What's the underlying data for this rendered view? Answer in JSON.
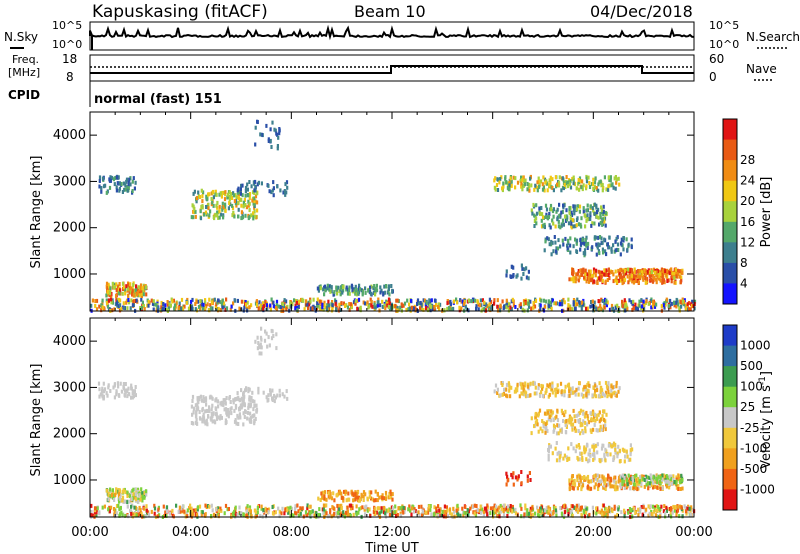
{
  "header": {
    "station": "Kapuskasing (fitACF)",
    "beam": "Beam 10",
    "date": "04/Dec/2018"
  },
  "noise_panel": {
    "left_label": "N.Sky",
    "right_label": "N.Search",
    "left_ticks": [
      "10^5",
      "10^0"
    ],
    "right_ticks": [
      "10^5",
      "10^0"
    ]
  },
  "freq_panel": {
    "left_label_line1": "Freq.",
    "left_label_line2": "[MHz]",
    "right_label": "Nave",
    "left_ticks": [
      "18",
      "8"
    ],
    "right_ticks": [
      "60",
      "0"
    ]
  },
  "cpid_panel": {
    "label": "CPID",
    "value": "normal (fast) 151"
  },
  "chart_data": [
    {
      "type": "heatmap",
      "name": "power",
      "ylabel": "Slant Range [km]",
      "ylim": [
        200,
        4500
      ],
      "yticks": [
        "1000",
        "2000",
        "3000",
        "4000"
      ],
      "xlim_hours": [
        0,
        24
      ],
      "colorbar_label": "Power [dB]",
      "colorbar_ticks": [
        "4",
        "8",
        "12",
        "16",
        "20",
        "24",
        "28"
      ],
      "colors": [
        "#1414ff",
        "#2a4fa8",
        "#3d7f8e",
        "#54a86a",
        "#a8d23c",
        "#f0c814",
        "#f08c14",
        "#e85a14",
        "#e01414"
      ]
    },
    {
      "type": "heatmap",
      "name": "velocity",
      "ylabel": "Slant Range [km]",
      "ylim": [
        200,
        4500
      ],
      "yticks": [
        "1000",
        "2000",
        "3000",
        "4000"
      ],
      "xlim_hours": [
        0,
        24
      ],
      "xlabel": "Time UT",
      "xticks": [
        "00:00",
        "04:00",
        "08:00",
        "12:00",
        "16:00",
        "20:00",
        "00:00"
      ],
      "colorbar_label": "Velocity [m s",
      "colorbar_label_sup": "-1",
      "colorbar_ticks": [
        "1000",
        "500",
        "100",
        "25",
        "-25",
        "-100",
        "-500",
        "-1000"
      ],
      "colors": [
        "#1e3cc8",
        "#2e6ea0",
        "#3c9c50",
        "#7cd23c",
        "#c8c8c8",
        "#f0c83c",
        "#f0a01e",
        "#f06414",
        "#e01414"
      ]
    }
  ]
}
